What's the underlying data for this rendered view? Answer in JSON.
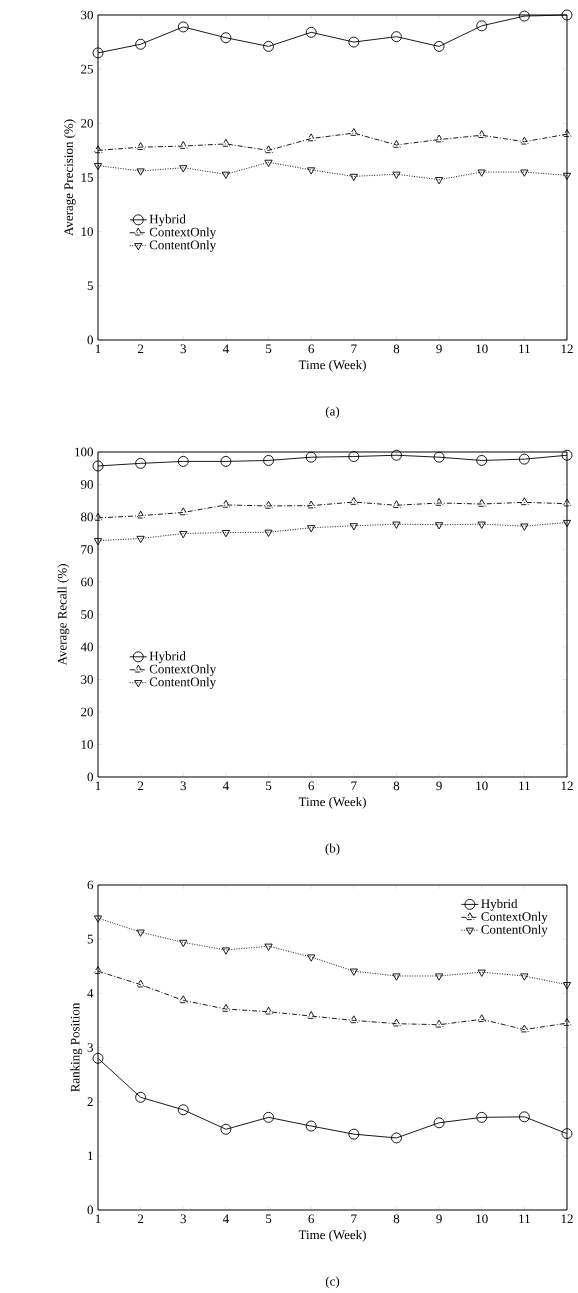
{
  "chart_data": [
    {
      "type": "line",
      "xlabel": "Time (Week)",
      "ylabel": "Average Precision (%)",
      "annotations": [
        "(a)"
      ],
      "x": [
        1,
        2,
        3,
        4,
        5,
        6,
        7,
        8,
        9,
        10,
        11,
        12
      ],
      "xlim": [
        1,
        12
      ],
      "xticks": [
        1,
        2,
        3,
        4,
        5,
        6,
        7,
        8,
        9,
        10,
        11,
        12
      ],
      "ylim": [
        0,
        30
      ],
      "yticks": [
        0,
        5,
        10,
        15,
        20,
        25,
        30
      ],
      "legend": "center left",
      "series": [
        {
          "name": "Hybrid",
          "color": "#000000",
          "marker": "circle",
          "line_style": "solid",
          "values": [
            26.5,
            27.3,
            28.9,
            27.9,
            27.1,
            28.4,
            27.5,
            28.0,
            27.1,
            29.0,
            29.9,
            30.0
          ]
        },
        {
          "name": "ContextOnly",
          "color": "#000000",
          "marker": "triangle",
          "line_style": "dashed",
          "values": [
            17.5,
            17.8,
            17.9,
            18.1,
            17.5,
            18.6,
            19.1,
            18.0,
            18.5,
            18.9,
            18.3,
            19.0
          ]
        },
        {
          "name": "ContentOnly",
          "color": "#000000",
          "marker": "triangle-down",
          "line_style": "dotted",
          "values": [
            16.1,
            15.6,
            15.9,
            15.3,
            16.4,
            15.7,
            15.1,
            15.3,
            14.8,
            15.5,
            15.5,
            15.2
          ]
        }
      ]
    },
    {
      "type": "line",
      "xlabel": "Time (Week)",
      "ylabel": "Average Recall (%)",
      "annotations": [
        "(b)"
      ],
      "x": [
        1,
        2,
        3,
        4,
        5,
        6,
        7,
        8,
        9,
        10,
        11,
        12
      ],
      "xlim": [
        1,
        12
      ],
      "xticks": [
        1,
        2,
        3,
        4,
        5,
        6,
        7,
        8,
        9,
        10,
        11,
        12
      ],
      "ylim": [
        0,
        100
      ],
      "yticks": [
        0,
        10,
        20,
        30,
        40,
        50,
        60,
        70,
        80,
        90,
        100
      ],
      "legend": "center left",
      "series": [
        {
          "name": "Hybrid",
          "color": "#000000",
          "marker": "circle",
          "line_style": "solid",
          "values": [
            95.7,
            96.5,
            97.1,
            97.1,
            97.4,
            98.4,
            98.6,
            99.0,
            98.4,
            97.4,
            97.8,
            99.0
          ]
        },
        {
          "name": "ContextOnly",
          "color": "#000000",
          "marker": "triangle",
          "line_style": "dashed",
          "values": [
            79.7,
            80.4,
            81.4,
            83.7,
            83.4,
            83.5,
            84.6,
            83.6,
            84.3,
            84.0,
            84.5,
            84.1
          ]
        },
        {
          "name": "ContentOnly",
          "color": "#000000",
          "marker": "triangle-down",
          "line_style": "dotted",
          "values": [
            72.7,
            73.4,
            74.9,
            75.2,
            75.3,
            76.7,
            77.3,
            77.8,
            77.6,
            77.8,
            77.2,
            78.3
          ]
        }
      ]
    },
    {
      "type": "line",
      "xlabel": "Time (Week)",
      "ylabel": "Ranking Position",
      "annotations": [
        "(c)"
      ],
      "x": [
        1,
        2,
        3,
        4,
        5,
        6,
        7,
        8,
        9,
        10,
        11,
        12
      ],
      "xlim": [
        1,
        12
      ],
      "xticks": [
        1,
        2,
        3,
        4,
        5,
        6,
        7,
        8,
        9,
        10,
        11,
        12
      ],
      "ylim": [
        0,
        6
      ],
      "yticks": [
        0,
        1,
        2,
        3,
        4,
        5,
        6
      ],
      "legend": "top right",
      "series": [
        {
          "name": "Hybrid",
          "color": "#000000",
          "marker": "circle",
          "line_style": "solid",
          "values": [
            2.8,
            2.08,
            1.85,
            1.49,
            1.71,
            1.55,
            1.4,
            1.33,
            1.61,
            1.71,
            1.72,
            1.41
          ]
        },
        {
          "name": "ContextOnly",
          "color": "#000000",
          "marker": "triangle",
          "line_style": "dashed",
          "values": [
            4.41,
            4.16,
            3.87,
            3.71,
            3.66,
            3.58,
            3.5,
            3.44,
            3.42,
            3.52,
            3.33,
            3.45
          ]
        },
        {
          "name": "ContentOnly",
          "color": "#000000",
          "marker": "triangle-down",
          "line_style": "dotted",
          "values": [
            5.39,
            5.13,
            4.94,
            4.8,
            4.87,
            4.67,
            4.41,
            4.32,
            4.32,
            4.39,
            4.32,
            4.16
          ]
        }
      ]
    }
  ]
}
